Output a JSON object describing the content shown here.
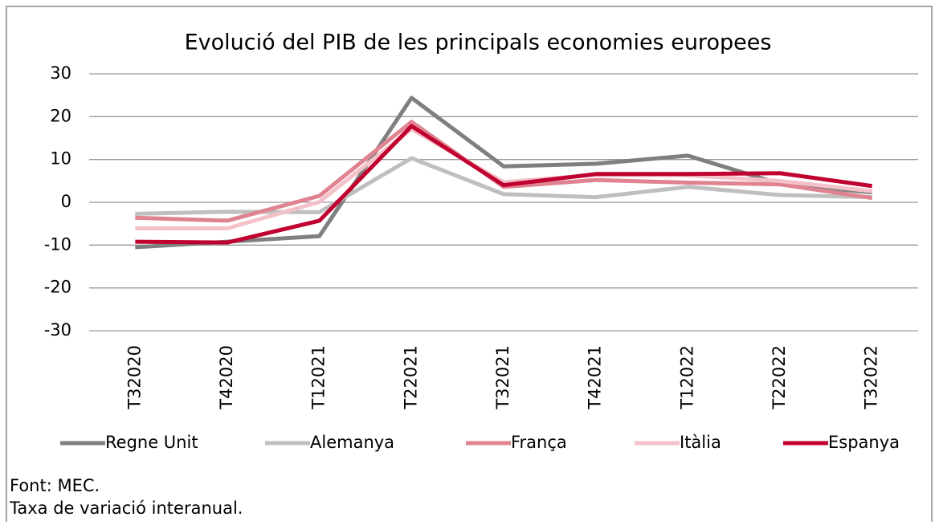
{
  "chart_data": {
    "type": "line",
    "title": "Evolució del PIB de les principals economies europees",
    "categories": [
      "T32020",
      "T42020",
      "T12021",
      "T22021",
      "T32021",
      "T42021",
      "T12022",
      "T22022",
      "T32022"
    ],
    "series": [
      {
        "name": "Regne Unit",
        "color": "#7f7f7f",
        "values": [
          -10.5,
          -9.2,
          -7.9,
          24.4,
          8.4,
          9.0,
          10.9,
          4.3,
          2.3
        ]
      },
      {
        "name": "Alemanya",
        "color": "#bfbfbf",
        "values": [
          -2.7,
          -2.2,
          -2.3,
          10.3,
          1.9,
          1.2,
          3.6,
          1.7,
          1.2
        ]
      },
      {
        "name": "França",
        "color": "#e08391",
        "values": [
          -3.6,
          -4.3,
          1.5,
          18.8,
          3.6,
          5.2,
          4.6,
          4.2,
          1.0
        ]
      },
      {
        "name": "Itàlia",
        "color": "#f4c1c9",
        "values": [
          -6.1,
          -6.1,
          0.1,
          17.1,
          4.7,
          6.4,
          6.3,
          5.0,
          2.6
        ]
      },
      {
        "name": "Espanya",
        "color": "#c0002f",
        "values": [
          -9.2,
          -9.4,
          -4.3,
          17.8,
          4.0,
          6.6,
          6.6,
          6.8,
          3.8
        ]
      }
    ],
    "ylim": [
      -30,
      30
    ],
    "yticks": [
      -30,
      -20,
      -10,
      0,
      10,
      20,
      30
    ],
    "grid": true,
    "legend": "bottom",
    "notes": [
      "Font: MEC.",
      "Taxa de variació interanual."
    ]
  }
}
